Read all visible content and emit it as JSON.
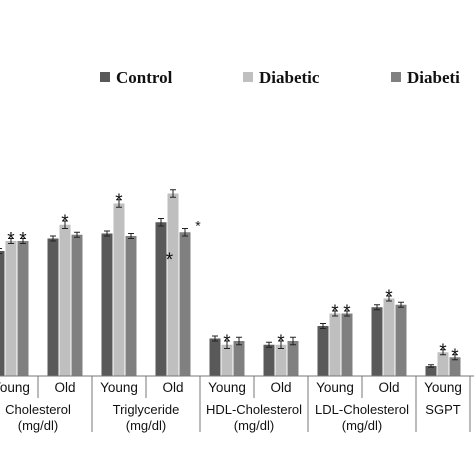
{
  "chart_data": {
    "type": "bar",
    "legend_position": "top",
    "grid": false,
    "series": [
      {
        "name": "Control",
        "color": "#595959"
      },
      {
        "name": "Diabetic",
        "color": "#bfbfbf"
      },
      {
        "name": "Diabeti",
        "color": "#808080"
      }
    ],
    "groups": [
      {
        "label_line1": "Cholesterol",
        "label_line2": "(mg/dl)",
        "subgroups": [
          {
            "label": "Young",
            "values": [
              100,
              108,
              108
            ],
            "errors": [
              2,
              2,
              2
            ],
            "stars": [
              "",
              "*",
              "*"
            ]
          },
          {
            "label": "Old",
            "values": [
              110,
              121,
              113
            ],
            "errors": [
              2,
              3,
              2
            ],
            "stars": [
              "",
              "*",
              ""
            ]
          }
        ]
      },
      {
        "label_line1": "Triglyceride",
        "label_line2": "(mg/dl)",
        "subgroups": [
          {
            "label": "Young",
            "values": [
              114,
              138,
              112
            ],
            "errors": [
              2,
              3,
              2
            ],
            "stars": [
              "",
              "*",
              ""
            ]
          },
          {
            "label": "Old",
            "values": [
              123,
              146,
              115
            ],
            "errors": [
              3,
              3,
              3
            ],
            "stars": [
              "",
              "",
              "*"
            ]
          }
        ]
      },
      {
        "label_line1": "HDL-Cholesterol",
        "label_line2": "(mg/dl)",
        "subgroups": [
          {
            "label": "Young",
            "values": [
              30,
              25,
              28
            ],
            "errors": [
              2,
              3,
              3
            ],
            "stars": [
              "",
              "*",
              ""
            ]
          },
          {
            "label": "Old",
            "values": [
              25,
              25,
              28
            ],
            "errors": [
              2,
              3,
              3
            ],
            "stars": [
              "",
              "*",
              ""
            ]
          }
        ]
      },
      {
        "label_line1": "LDL-Cholesterol",
        "label_line2": "(mg/dl)",
        "subgroups": [
          {
            "label": "Young",
            "values": [
              40,
              50,
              50
            ],
            "errors": [
              2,
              2,
              2
            ],
            "stars": [
              "",
              "*",
              "*"
            ]
          },
          {
            "label": "Old",
            "values": [
              55,
              62,
              57
            ],
            "errors": [
              2,
              2,
              2
            ],
            "stars": [
              "",
              "*",
              ""
            ]
          }
        ]
      },
      {
        "label_line1": "SGPT",
        "label_line2": "",
        "subgroups": [
          {
            "label": "Young",
            "values": [
              8,
              19,
              15
            ],
            "errors": [
              1,
              2,
              2
            ],
            "stars": [
              "",
              "*",
              "*"
            ]
          }
        ]
      }
    ]
  }
}
